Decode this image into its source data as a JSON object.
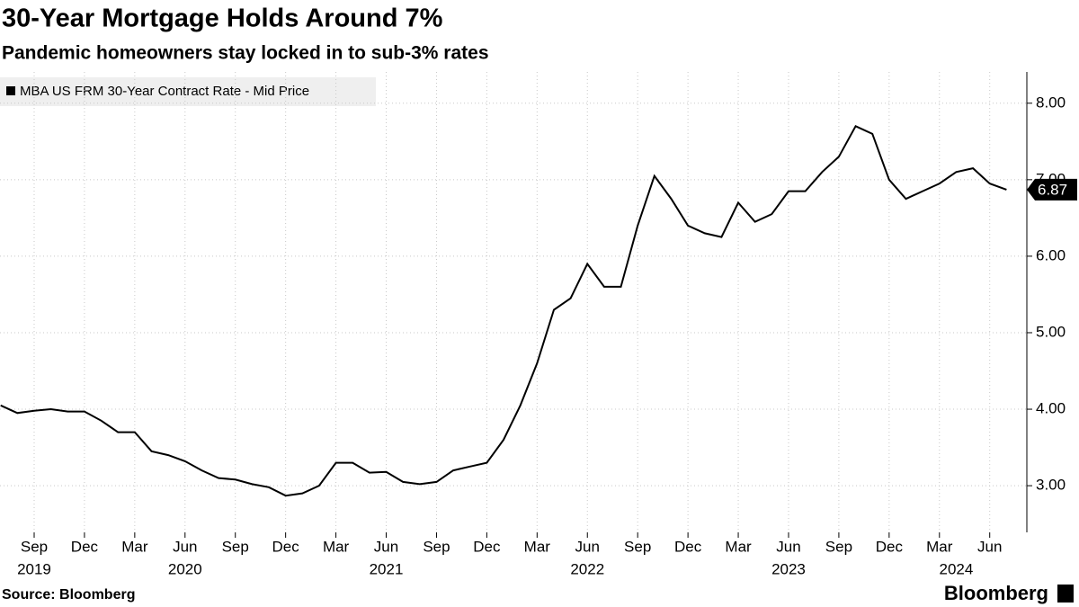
{
  "chart_data": {
    "type": "line",
    "title": "30-Year Mortgage Holds Around 7%",
    "subtitle": "Pandemic homeowners stay locked in to sub-3% rates",
    "source": "Source: Bloomberg",
    "brand": "Bloomberg",
    "legend": "top-left",
    "grid": true,
    "x": [
      "2019-07",
      "2019-08",
      "2019-09",
      "2019-10",
      "2019-11",
      "2019-12",
      "2020-01",
      "2020-02",
      "2020-03",
      "2020-04",
      "2020-05",
      "2020-06",
      "2020-07",
      "2020-08",
      "2020-09",
      "2020-10",
      "2020-11",
      "2020-12",
      "2021-01",
      "2021-02",
      "2021-03",
      "2021-04",
      "2021-05",
      "2021-06",
      "2021-07",
      "2021-08",
      "2021-09",
      "2021-10",
      "2021-11",
      "2021-12",
      "2022-01",
      "2022-02",
      "2022-03",
      "2022-04",
      "2022-05",
      "2022-06",
      "2022-07",
      "2022-08",
      "2022-09",
      "2022-10",
      "2022-11",
      "2022-12",
      "2023-01",
      "2023-02",
      "2023-03",
      "2023-04",
      "2023-05",
      "2023-06",
      "2023-07",
      "2023-08",
      "2023-09",
      "2023-10",
      "2023-11",
      "2023-12",
      "2024-01",
      "2024-02",
      "2024-03",
      "2024-04",
      "2024-05",
      "2024-06",
      "2024-07"
    ],
    "series": [
      {
        "name": "MBA US FRM 30-Year Contract Rate - Mid Price",
        "color": "#000000",
        "values": [
          4.05,
          3.95,
          3.98,
          4.0,
          3.97,
          3.97,
          3.85,
          3.7,
          3.7,
          3.45,
          3.4,
          3.32,
          3.2,
          3.1,
          3.08,
          3.02,
          2.98,
          2.87,
          2.9,
          3.0,
          3.3,
          3.3,
          3.17,
          3.18,
          3.05,
          3.02,
          3.05,
          3.2,
          3.25,
          3.3,
          3.6,
          4.05,
          4.6,
          5.3,
          5.45,
          5.9,
          5.6,
          5.6,
          6.4,
          7.05,
          6.75,
          6.4,
          6.3,
          6.25,
          6.7,
          6.45,
          6.55,
          6.85,
          6.85,
          7.1,
          7.3,
          7.7,
          7.6,
          7.0,
          6.75,
          6.85,
          6.95,
          7.1,
          7.15,
          6.95,
          6.87
        ]
      }
    ],
    "xlim": [
      "2019-07",
      "2024-08"
    ],
    "xticks": [
      {
        "value": "2019-09",
        "label": "Sep"
      },
      {
        "value": "2019-12",
        "label": "Dec"
      },
      {
        "value": "2020-03",
        "label": "Mar"
      },
      {
        "value": "2020-06",
        "label": "Jun"
      },
      {
        "value": "2020-09",
        "label": "Sep"
      },
      {
        "value": "2020-12",
        "label": "Dec"
      },
      {
        "value": "2021-03",
        "label": "Mar"
      },
      {
        "value": "2021-06",
        "label": "Jun"
      },
      {
        "value": "2021-09",
        "label": "Sep"
      },
      {
        "value": "2021-12",
        "label": "Dec"
      },
      {
        "value": "2022-03",
        "label": "Mar"
      },
      {
        "value": "2022-06",
        "label": "Jun"
      },
      {
        "value": "2022-09",
        "label": "Sep"
      },
      {
        "value": "2022-12",
        "label": "Dec"
      },
      {
        "value": "2023-03",
        "label": "Mar"
      },
      {
        "value": "2023-06",
        "label": "Jun"
      },
      {
        "value": "2023-09",
        "label": "Sep"
      },
      {
        "value": "2023-12",
        "label": "Dec"
      },
      {
        "value": "2024-03",
        "label": "Mar"
      },
      {
        "value": "2024-06",
        "label": "Jun"
      }
    ],
    "year_labels": [
      {
        "value": "2019-09",
        "label": "2019"
      },
      {
        "value": "2020-06",
        "label": "2020"
      },
      {
        "value": "2021-06",
        "label": "2021"
      },
      {
        "value": "2022-06",
        "label": "2022"
      },
      {
        "value": "2023-06",
        "label": "2023"
      },
      {
        "value": "2024-04",
        "label": "2024"
      }
    ],
    "ylim": [
      2.39,
      8.35
    ],
    "yticks": [
      {
        "value": 3,
        "label": "3.00"
      },
      {
        "value": 4,
        "label": "4.00"
      },
      {
        "value": 5,
        "label": "5.00"
      },
      {
        "value": 6,
        "label": "6.00"
      },
      {
        "value": 7,
        "label": "7.00"
      },
      {
        "value": 8,
        "label": "8.00"
      }
    ]
  }
}
